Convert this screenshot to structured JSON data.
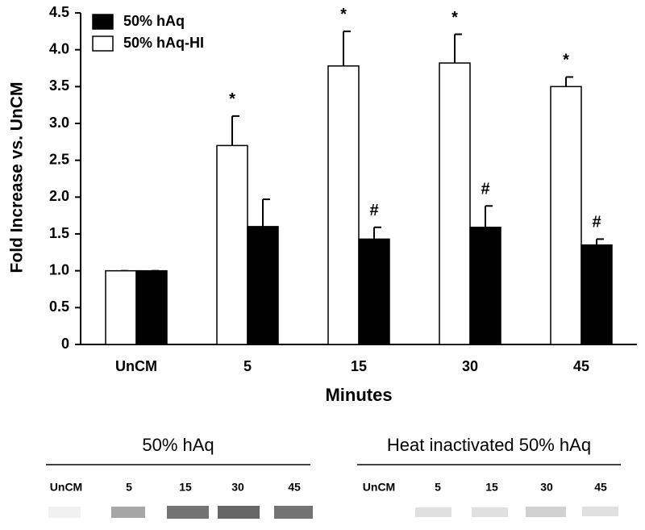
{
  "chart_data": {
    "type": "bar",
    "y_label": "Fold Increase vs. UnCM",
    "x_label": "Minutes",
    "categories": [
      "UnCM",
      "5",
      "15",
      "30",
      "45"
    ],
    "series": [
      {
        "name": "50% hAq",
        "color": "#000000",
        "values": [
          1.0,
          1.6,
          1.43,
          1.59,
          1.35
        ],
        "errors": [
          0,
          0.37,
          0.16,
          0.29,
          0.08
        ],
        "annotations": [
          null,
          null,
          "#",
          "#",
          "#"
        ]
      },
      {
        "name": "50% hAq-HI",
        "color": "#ffffff",
        "values": [
          1.0,
          2.7,
          3.78,
          3.82,
          3.5
        ],
        "errors": [
          0,
          0.4,
          0.47,
          0.39,
          0.13
        ],
        "annotations": [
          null,
          "*",
          "*",
          "*",
          "*"
        ]
      }
    ],
    "ylim": [
      0,
      4.5
    ],
    "yticks": [
      0,
      0.5,
      {
        "value": 1,
        "label": "1.0"
      },
      1.5,
      {
        "value": 2,
        "label": "2.0"
      },
      2.5,
      {
        "value": 3,
        "label": "3.0"
      },
      3.5,
      {
        "value": 4,
        "label": "4.0"
      },
      4.5
    ],
    "grid": false,
    "legend": "top-left"
  },
  "blot": {
    "panels": [
      {
        "title": "50% hAq",
        "lanes": [
          "UnCM",
          "5",
          "15",
          "30",
          "45"
        ]
      },
      {
        "title": "Heat inactivated 50% hAq",
        "lanes": [
          "UnCM",
          "5",
          "15",
          "30",
          "45"
        ]
      }
    ]
  }
}
